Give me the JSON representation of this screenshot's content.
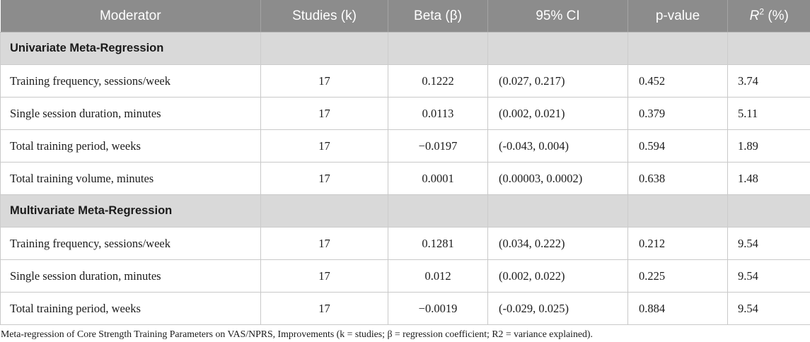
{
  "header": {
    "columns": [
      "Moderator",
      "Studies (k)",
      "Beta (β)",
      "95% CI",
      "p-value"
    ],
    "r2": {
      "base": "R",
      "sup": "2",
      "rest": " (%)"
    }
  },
  "sections": [
    {
      "title": "Univariate Meta-Regression",
      "rows": [
        {
          "moderator": "Training frequency, sessions/week",
          "k": "17",
          "beta": "0.1222",
          "ci": "(0.027, 0.217)",
          "p": "0.452",
          "r2": "3.74"
        },
        {
          "moderator": "Single session duration, minutes",
          "k": "17",
          "beta": "0.0113",
          "ci": "(0.002, 0.021)",
          "p": "0.379",
          "r2": "5.11"
        },
        {
          "moderator": "Total training period, weeks",
          "k": "17",
          "beta": "−0.0197",
          "ci": "(-0.043, 0.004)",
          "p": "0.594",
          "r2": "1.89"
        },
        {
          "moderator": "Total training volume, minutes",
          "k": "17",
          "beta": "0.0001",
          "ci": "(0.00003, 0.0002)",
          "p": "0.638",
          "r2": "1.48"
        }
      ]
    },
    {
      "title": "Multivariate Meta-Regression",
      "rows": [
        {
          "moderator": "Training frequency, sessions/week",
          "k": "17",
          "beta": "0.1281",
          "ci": "(0.034, 0.222)",
          "p": "0.212",
          "r2": "9.54"
        },
        {
          "moderator": "Single session duration, minutes",
          "k": "17",
          "beta": "0.012",
          "ci": "(0.002, 0.022)",
          "p": "0.225",
          "r2": "9.54"
        },
        {
          "moderator": "Total training period, weeks",
          "k": "17",
          "beta": "−0.0019",
          "ci": "(-0.029, 0.025)",
          "p": "0.884",
          "r2": "9.54"
        }
      ]
    }
  ],
  "caption": "Meta-regression of Core Strength Training Parameters on VAS/NPRS, Improvements (k = studies; β = regression coefficient; R2 = variance explained).",
  "colors": {
    "header_bg": "#8c8c8c",
    "header_text": "#ffffff",
    "section_bg": "#d9d9d9",
    "row_border": "#c9c9c9",
    "body_text": "#1c1c1c"
  }
}
